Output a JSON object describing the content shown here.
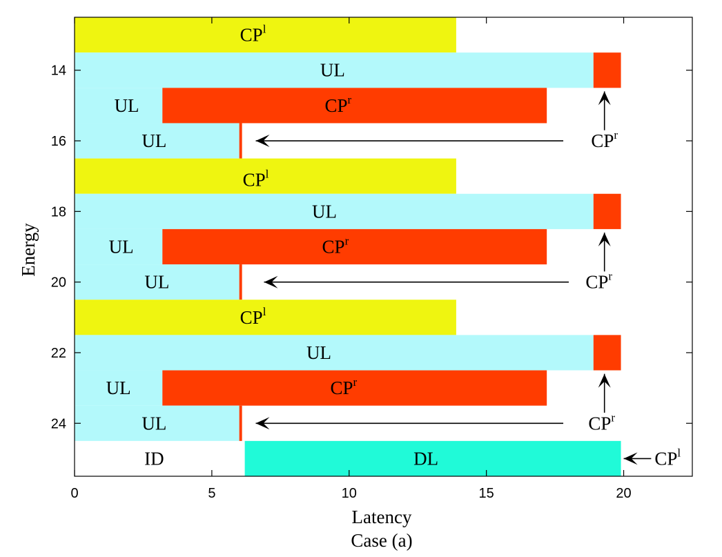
{
  "chart_data": {
    "type": "horizontal-bar-timeline",
    "xlabel": "Latency",
    "ylabel": "Energy",
    "subtitle": "Case (a)",
    "xlim": [
      0,
      22.5
    ],
    "ylim": [
      12.5,
      25.5
    ],
    "x_ticks": [
      0,
      5,
      10,
      15,
      20
    ],
    "y_ticks": [
      14,
      16,
      18,
      20,
      22,
      24
    ],
    "colors": {
      "CPl": "#eff510",
      "UL": "#b3f9fb",
      "CPr": "#ff3c00",
      "DL": "#20fad8",
      "ID": "#ffffff"
    },
    "segments": [
      {
        "name": "CPl",
        "type": "CPl",
        "y0": 12.5,
        "y1": 13.5,
        "x0": 0,
        "x1": 13.9
      },
      {
        "name": "UL",
        "type": "UL",
        "y0": 13.5,
        "y1": 14.5,
        "x0": 0,
        "x1": 18.9
      },
      {
        "name": "CPr",
        "type": "CPr",
        "y0": 13.5,
        "y1": 14.5,
        "x0": 18.9,
        "x1": 19.9
      },
      {
        "name": "UL",
        "type": "UL",
        "y0": 14.5,
        "y1": 15.5,
        "x0": 0,
        "x1": 3.2
      },
      {
        "name": "CPr",
        "type": "CPr",
        "y0": 14.5,
        "y1": 15.5,
        "x0": 3.2,
        "x1": 17.2
      },
      {
        "name": "UL",
        "type": "UL",
        "y0": 15.5,
        "y1": 16.5,
        "x0": 0,
        "x1": 6.0
      },
      {
        "name": "CPr",
        "type": "CPr",
        "y0": 15.5,
        "y1": 16.5,
        "x0": 6.0,
        "x1": 6.1
      },
      {
        "name": "CPl",
        "type": "CPl",
        "y0": 16.5,
        "y1": 17.5,
        "x0": 0,
        "x1": 13.9
      },
      {
        "name": "UL",
        "type": "UL",
        "y0": 17.5,
        "y1": 18.5,
        "x0": 0,
        "x1": 18.9
      },
      {
        "name": "CPr",
        "type": "CPr",
        "y0": 17.5,
        "y1": 18.5,
        "x0": 18.9,
        "x1": 19.9
      },
      {
        "name": "UL",
        "type": "UL",
        "y0": 18.5,
        "y1": 19.5,
        "x0": 0,
        "x1": 3.2
      },
      {
        "name": "CPr",
        "type": "CPr",
        "y0": 18.5,
        "y1": 19.5,
        "x0": 3.2,
        "x1": 17.2
      },
      {
        "name": "UL",
        "type": "UL",
        "y0": 19.5,
        "y1": 20.5,
        "x0": 0,
        "x1": 6.0
      },
      {
        "name": "CPr",
        "type": "CPr",
        "y0": 19.5,
        "y1": 20.5,
        "x0": 6.0,
        "x1": 6.1
      },
      {
        "name": "CPl",
        "type": "CPl",
        "y0": 20.5,
        "y1": 21.5,
        "x0": 0,
        "x1": 13.9
      },
      {
        "name": "UL",
        "type": "UL",
        "y0": 21.5,
        "y1": 22.5,
        "x0": 0,
        "x1": 18.9
      },
      {
        "name": "CPr",
        "type": "CPr",
        "y0": 21.5,
        "y1": 22.5,
        "x0": 18.9,
        "x1": 19.9
      },
      {
        "name": "UL",
        "type": "UL",
        "y0": 22.5,
        "y1": 23.5,
        "x0": 0,
        "x1": 3.2
      },
      {
        "name": "CPr",
        "type": "CPr",
        "y0": 22.5,
        "y1": 23.5,
        "x0": 3.2,
        "x1": 17.2
      },
      {
        "name": "UL",
        "type": "UL",
        "y0": 23.5,
        "y1": 24.5,
        "x0": 0,
        "x1": 6.0
      },
      {
        "name": "CPr",
        "type": "CPr",
        "y0": 23.5,
        "y1": 24.5,
        "x0": 6.0,
        "x1": 6.1
      },
      {
        "name": "ID",
        "type": "ID",
        "y0": 24.5,
        "y1": 25.5,
        "x0": 0,
        "x1": 6.2
      },
      {
        "name": "DL",
        "type": "DL",
        "y0": 24.5,
        "y1": 25.5,
        "x0": 6.2,
        "x1": 19.9
      }
    ],
    "labels": [
      {
        "base": "CP",
        "sup": "l",
        "x": 6.5,
        "y": 13.0
      },
      {
        "base": "UL",
        "sup": "",
        "x": 9.4,
        "y": 14.0
      },
      {
        "base": "UL",
        "sup": "",
        "x": 1.9,
        "y": 15.0
      },
      {
        "base": "CP",
        "sup": "r",
        "x": 9.6,
        "y": 15.0
      },
      {
        "base": "UL",
        "sup": "",
        "x": 2.9,
        "y": 16.0
      },
      {
        "base": "CP",
        "sup": "r",
        "x": 19.3,
        "y": 16.0
      },
      {
        "base": "CP",
        "sup": "l",
        "x": 6.6,
        "y": 17.1
      },
      {
        "base": "UL",
        "sup": "",
        "x": 9.1,
        "y": 18.0
      },
      {
        "base": "UL",
        "sup": "",
        "x": 1.7,
        "y": 19.0
      },
      {
        "base": "CP",
        "sup": "r",
        "x": 9.5,
        "y": 19.0
      },
      {
        "base": "UL",
        "sup": "",
        "x": 3.0,
        "y": 20.0
      },
      {
        "base": "CP",
        "sup": "r",
        "x": 19.1,
        "y": 20.0
      },
      {
        "base": "CP",
        "sup": "l",
        "x": 6.5,
        "y": 21.0
      },
      {
        "base": "UL",
        "sup": "",
        "x": 8.9,
        "y": 22.0
      },
      {
        "base": "UL",
        "sup": "",
        "x": 1.6,
        "y": 23.0
      },
      {
        "base": "CP",
        "sup": "r",
        "x": 9.8,
        "y": 23.0
      },
      {
        "base": "UL",
        "sup": "",
        "x": 2.9,
        "y": 24.0
      },
      {
        "base": "CP",
        "sup": "r",
        "x": 19.2,
        "y": 24.0
      },
      {
        "base": "ID",
        "sup": "",
        "x": 2.9,
        "y": 25.0
      },
      {
        "base": "DL",
        "sup": "",
        "x": 12.8,
        "y": 25.0
      },
      {
        "base": "CP",
        "sup": "l",
        "x": 21.6,
        "y": 25.0
      }
    ],
    "arrows": [
      {
        "from": [
          19.3,
          15.7
        ],
        "to": [
          19.3,
          14.6
        ]
      },
      {
        "from": [
          17.8,
          16.0
        ],
        "to": [
          6.6,
          16.0
        ]
      },
      {
        "from": [
          19.3,
          19.7
        ],
        "to": [
          19.3,
          18.6
        ]
      },
      {
        "from": [
          18.0,
          20.0
        ],
        "to": [
          6.9,
          20.0
        ]
      },
      {
        "from": [
          19.3,
          23.7
        ],
        "to": [
          19.3,
          22.6
        ]
      },
      {
        "from": [
          17.8,
          24.0
        ],
        "to": [
          6.6,
          24.0
        ]
      },
      {
        "from": [
          21.0,
          25.0
        ],
        "to": [
          20.0,
          25.0
        ]
      }
    ]
  }
}
